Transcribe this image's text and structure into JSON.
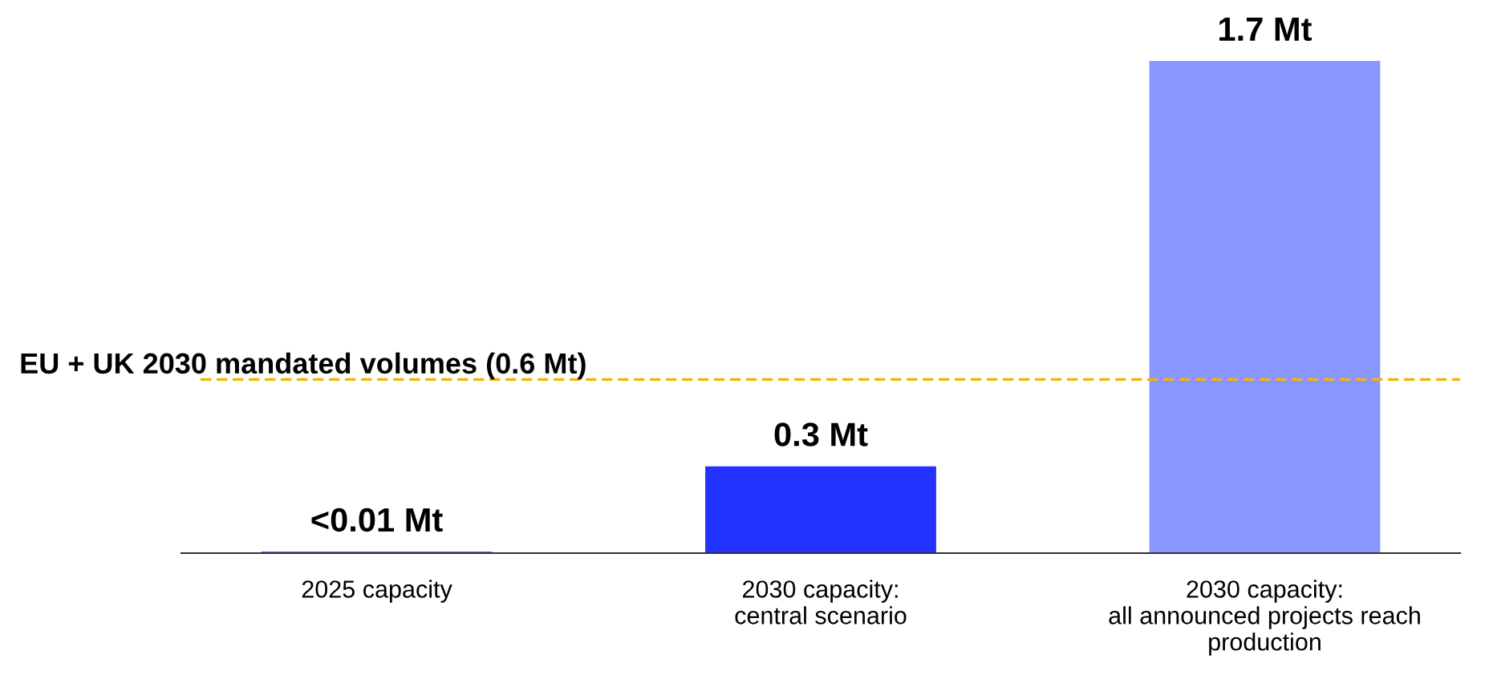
{
  "chart_data": {
    "type": "bar",
    "categories": [
      "2025 capacity",
      "2030 capacity:\ncentral scenario",
      "2030 capacity:\nall announced projects reach\nproduction"
    ],
    "values": [
      0.005,
      0.3,
      1.7
    ],
    "value_labels": [
      "<0.01 Mt",
      "0.3 Mt",
      "1.7 Mt"
    ],
    "colors": [
      "#2233ff",
      "#2233ff",
      "#8a96ff"
    ],
    "ref_lines": [
      {
        "axis": "y",
        "value": 0.6,
        "label": "EU + UK 2030 mandated volumes (0.6 Mt)",
        "color": "#f5b400",
        "line_style": "dashed"
      }
    ],
    "grid": false,
    "legend": false
  }
}
